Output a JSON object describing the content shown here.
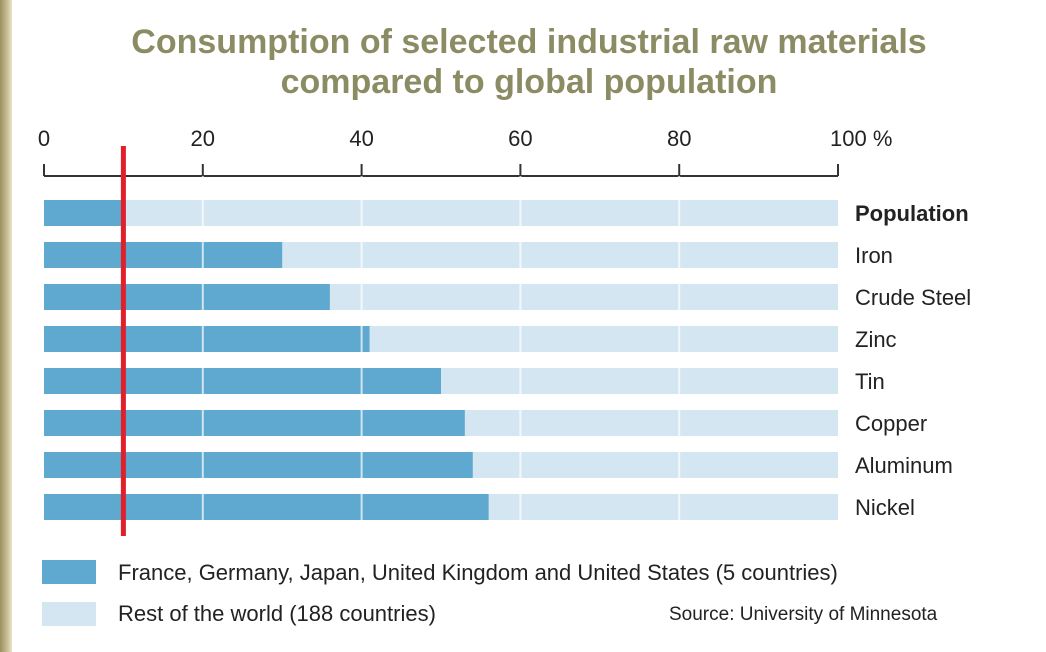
{
  "chart_data": {
    "type": "bar",
    "stacked": true,
    "orientation": "horizontal",
    "title": "Consumption of selected industrial raw materials compared to global population",
    "x_ticks": [
      "0",
      "20",
      "40",
      "60",
      "80",
      "100 %"
    ],
    "xlim": [
      0,
      100
    ],
    "categories": [
      "Population",
      "Iron",
      "Crude Steel",
      "Zinc",
      "Tin",
      "Copper",
      "Aluminum",
      "Nickel"
    ],
    "series": [
      {
        "name": "France, Germany, Japan, United Kingdom and United States (5 countries)",
        "values": [
          10,
          30,
          36,
          41,
          50,
          53,
          54,
          56
        ]
      },
      {
        "name": "Rest of the world (188 countries)",
        "values": [
          90,
          70,
          64,
          59,
          50,
          47,
          46,
          44
        ]
      }
    ],
    "reference_line": {
      "x": 10
    },
    "grid": true,
    "legend_position": "bottom-left",
    "source": "Source: University of Minnesota",
    "colors": {
      "five_countries": "#5fa9d0",
      "rest_of_world": "#d4e6f2",
      "population_line": "#e0202a",
      "population_label": "#d8202a",
      "title": "#8c8c64"
    }
  }
}
